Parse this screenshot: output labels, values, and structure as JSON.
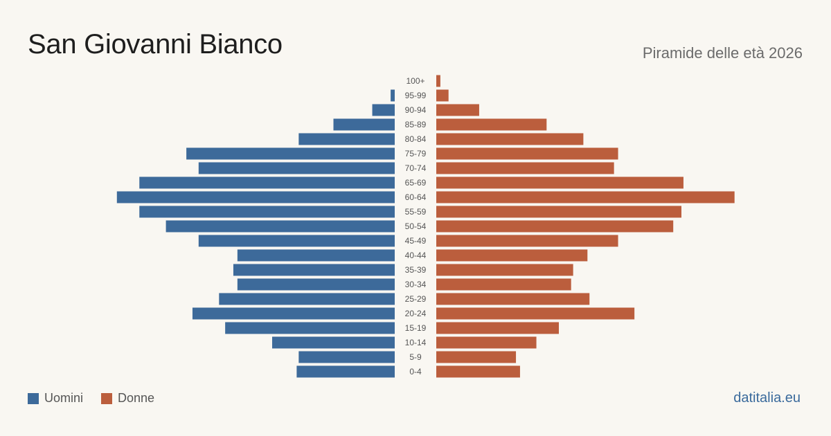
{
  "title": "San Giovanni Bianco",
  "subtitle": "Piramide delle età 2026",
  "source": "datitalia.eu",
  "colors": {
    "men": "#3d6a9a",
    "women": "#bb5e3d",
    "source_text": "#3a6a9c"
  },
  "legend": {
    "men_label": "Uomini",
    "women_label": "Donne"
  },
  "chart_data": {
    "type": "bar",
    "orientation": "horizontal-pyramid",
    "title": "San Giovanni Bianco",
    "subtitle": "Piramide delle età 2026",
    "categories": [
      "100+",
      "95-99",
      "90-94",
      "85-89",
      "80-84",
      "75-79",
      "70-74",
      "65-69",
      "60-64",
      "55-59",
      "50-54",
      "45-49",
      "40-44",
      "35-39",
      "30-34",
      "25-29",
      "20-24",
      "15-19",
      "10-14",
      "5-9",
      "0-4"
    ],
    "series": [
      {
        "name": "Uomini",
        "color": "#3d6a9a",
        "values": [
          0,
          2,
          11,
          30,
          47,
          102,
          96,
          125,
          136,
          125,
          112,
          96,
          77,
          79,
          77,
          86,
          99,
          83,
          60,
          47,
          48
        ]
      },
      {
        "name": "Donne",
        "color": "#bb5e3d",
        "values": [
          2,
          6,
          21,
          54,
          72,
          89,
          87,
          121,
          146,
          120,
          116,
          89,
          74,
          67,
          66,
          75,
          97,
          60,
          49,
          39,
          41
        ]
      }
    ],
    "legend": "bottom-left",
    "grid": false
  }
}
